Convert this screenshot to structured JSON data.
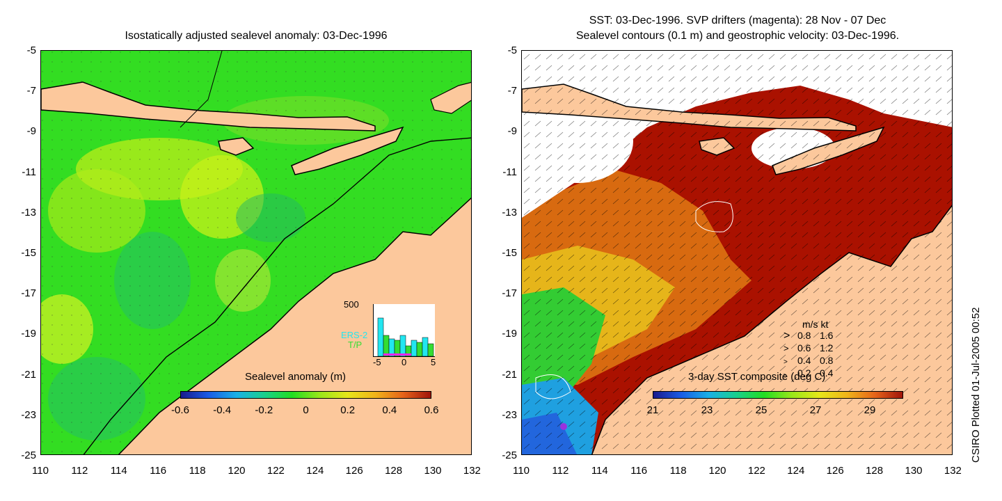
{
  "left_panel": {
    "title": "Isostatically adjusted sealevel anomaly: 03-Dec-1996",
    "colorbar_label": "Sealevel anomaly (m)",
    "colorbar_ticks": [
      "-0.6",
      "-0.4",
      "-0.2",
      "0",
      "0.2",
      "0.4",
      "0.6"
    ],
    "inset": {
      "ymax_label": "500",
      "legend_ers": "ERS-2",
      "legend_tp": "T/P",
      "x_ticks": [
        "-5",
        "0",
        "5"
      ],
      "ers_color": "#22e6f0",
      "tp_color": "#33dd33"
    }
  },
  "right_panel": {
    "title_line1": "SST: 03-Dec-1996. SVP drifters (magenta): 28 Nov - 07 Dec",
    "title_line2": "Sealevel contours (0.1 m) and geostrophic velocity: 03-Dec-1996.",
    "colorbar_label": "3-day SST composite (deg C)",
    "colorbar_ticks": [
      "21",
      "23",
      "25",
      "27",
      "29"
    ],
    "speed_legend": {
      "header": "m/s  kt",
      "rows": [
        {
          "ms": "0.8",
          "kt": "1.6"
        },
        {
          "ms": "0.6",
          "kt": "1.2"
        },
        {
          "ms": "0.4",
          "kt": "0.8"
        },
        {
          "ms": "0.2",
          "kt": "0.4"
        }
      ]
    }
  },
  "axes": {
    "y_ticks": [
      "-5",
      "-7",
      "-9",
      "-11",
      "-13",
      "-15",
      "-17",
      "-19",
      "-21",
      "-23",
      "-25"
    ],
    "x_ticks": [
      "110",
      "112",
      "114",
      "116",
      "118",
      "120",
      "122",
      "124",
      "126",
      "128",
      "130",
      "132"
    ]
  },
  "credit": "CSIRO Plotted 01-Jul-2005 00:52",
  "colors": {
    "land": "#fcc89c",
    "ocean_green": "#22dd11",
    "sst_hot": "#aa1100",
    "sst_cool": "#2266dd"
  }
}
